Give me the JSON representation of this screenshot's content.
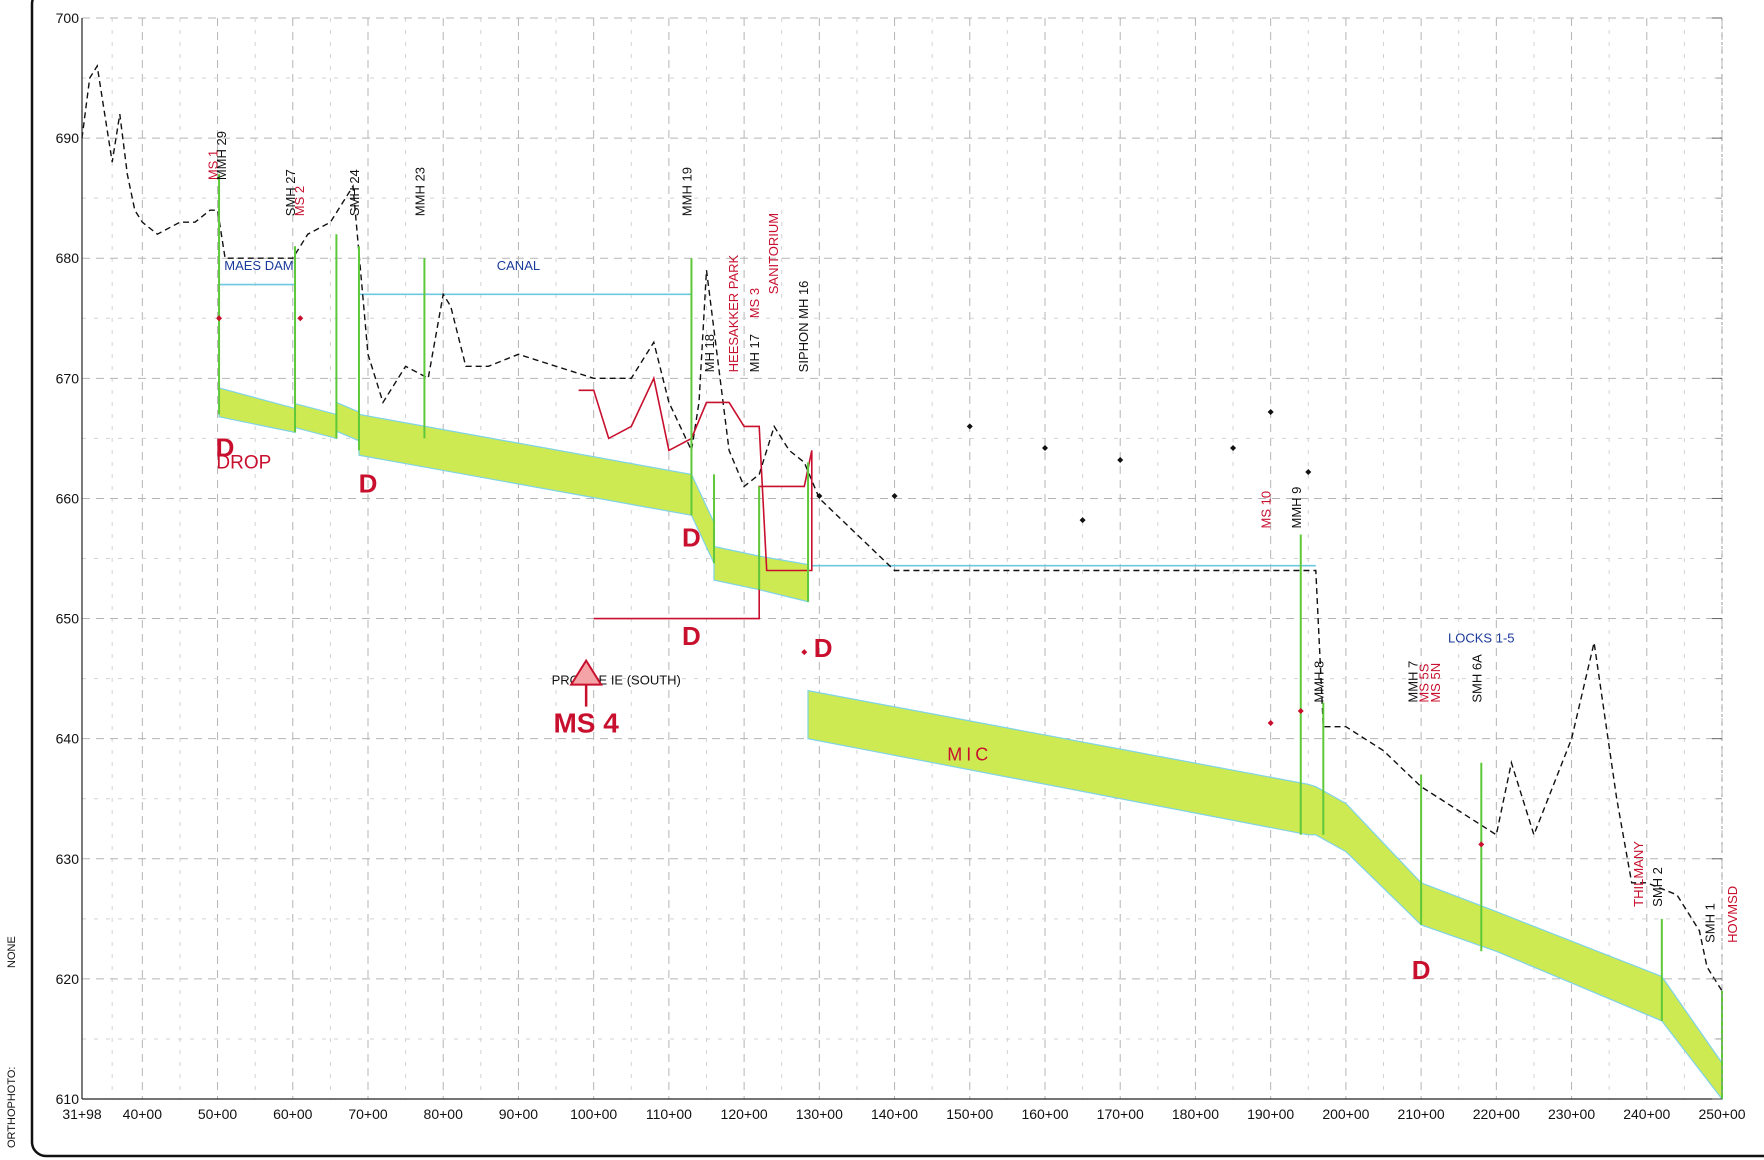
{
  "sidebar": {
    "projection": "NONE",
    "orthophoto": "ORTHOPHOTO:"
  },
  "colors": {
    "pipe_fill": "#cdea52",
    "pipe_edge": "#7fd3e6",
    "ground": "#111111",
    "profile_red": "#c8102e",
    "label_black": "#111111",
    "label_red": "#c8102e",
    "label_blue": "#1a3a9a",
    "hgl": "#6cc9e0",
    "manhole_green": "#5ec83a",
    "grid": "#b5b5b5"
  },
  "chart_data": {
    "type": "profile",
    "y_range": [
      610,
      700
    ],
    "y_ticks": [
      610,
      620,
      630,
      640,
      650,
      660,
      670,
      680,
      690,
      700
    ],
    "x_range": [
      3198,
      25000
    ],
    "x_ticks": [
      {
        "sta": 3198,
        "label": "31+98"
      },
      {
        "sta": 4000,
        "label": "40+00"
      },
      {
        "sta": 5000,
        "label": "50+00"
      },
      {
        "sta": 6000,
        "label": "60+00"
      },
      {
        "sta": 7000,
        "label": "70+00"
      },
      {
        "sta": 8000,
        "label": "80+00"
      },
      {
        "sta": 9000,
        "label": "90+00"
      },
      {
        "sta": 10000,
        "label": "100+00"
      },
      {
        "sta": 11000,
        "label": "110+00"
      },
      {
        "sta": 12000,
        "label": "120+00"
      },
      {
        "sta": 13000,
        "label": "130+00"
      },
      {
        "sta": 14000,
        "label": "140+00"
      },
      {
        "sta": 15000,
        "label": "150+00"
      },
      {
        "sta": 16000,
        "label": "160+00"
      },
      {
        "sta": 17000,
        "label": "170+00"
      },
      {
        "sta": 18000,
        "label": "180+00"
      },
      {
        "sta": 19000,
        "label": "190+00"
      },
      {
        "sta": 20000,
        "label": "200+00"
      },
      {
        "sta": 21000,
        "label": "210+00"
      },
      {
        "sta": 22000,
        "label": "220+00"
      },
      {
        "sta": 23000,
        "label": "230+00"
      },
      {
        "sta": 24000,
        "label": "240+00"
      },
      {
        "sta": 25000,
        "label": "250+00"
      }
    ],
    "pipe_bands": [
      {
        "sta": [
          5020,
          6030,
          6030,
          6580,
          6580,
          6880,
          6880,
          11300,
          11600,
          11600,
          12200,
          12200,
          12850
        ],
        "top": [
          669.2,
          667.5,
          667.9,
          667.0,
          668.0,
          667.2,
          667.0,
          662.0,
          658.0,
          656.0,
          655.2,
          655.2,
          654.5
        ],
        "bottom": [
          666.8,
          665.5,
          665.9,
          665.0,
          665.6,
          664.8,
          663.6,
          658.6,
          654.6,
          653.2,
          652.4,
          652.4,
          651.4
        ]
      },
      {
        "sta": [
          12850,
          19500,
          19600,
          20000,
          21000,
          22000,
          24200,
          25000
        ],
        "top": [
          644.0,
          636.2,
          636.0,
          634.6,
          628.0,
          625.6,
          620.2,
          613.0
        ],
        "bottom": [
          640.0,
          632.0,
          632.0,
          630.6,
          624.5,
          622.3,
          616.5,
          610.0
        ]
      }
    ],
    "ground_profile": {
      "sta": [
        3198,
        3300,
        3400,
        3500,
        3600,
        3700,
        3800,
        3900,
        4000,
        4200,
        4500,
        4700,
        4900,
        5000,
        5100,
        5500,
        5800,
        6000,
        6200,
        6500,
        6800,
        7000,
        7200,
        7500,
        7800,
        8000,
        8100,
        8300,
        8600,
        9000,
        9500,
        10000,
        10500,
        10800,
        11000,
        11300,
        11400,
        11500,
        11800,
        12000,
        12200,
        12400,
        12600,
        12800,
        13000,
        14000,
        16000,
        18000,
        19000,
        19600,
        19700,
        20000,
        20500,
        21000,
        21500,
        22000,
        22200,
        22500,
        23000,
        23300,
        23600,
        23800,
        24000,
        24400,
        24700,
        24800,
        25000
      ],
      "elev": [
        690,
        695,
        696,
        692,
        688,
        692,
        687,
        684,
        683,
        682,
        683,
        683,
        684,
        684,
        680,
        680,
        680,
        680,
        682,
        683,
        686,
        672,
        668,
        671,
        670,
        677,
        676,
        671,
        671,
        672,
        671,
        670,
        670,
        673,
        668,
        664,
        668,
        679,
        664,
        661,
        662,
        666,
        664,
        663,
        660,
        654,
        654,
        654,
        654,
        654,
        641,
        641,
        639,
        636,
        634,
        632,
        638,
        632,
        640,
        648,
        635,
        628,
        628,
        627,
        624,
        621,
        619
      ],
      "style": "dashed"
    },
    "existing_profile_red": {
      "sta": [
        9800,
        10000,
        10200,
        10500,
        10800,
        11000,
        11300,
        11500,
        11800,
        12000,
        12200,
        12300,
        12900,
        12900,
        12800,
        12200,
        12200,
        12000,
        11700,
        11300,
        11000,
        10500,
        10000
      ],
      "elev": [
        669,
        669,
        665,
        666,
        670,
        664,
        665,
        668,
        668,
        666,
        666,
        654,
        654,
        664,
        661,
        661,
        650,
        650,
        650,
        650,
        650,
        650,
        650
      ],
      "note": "approximate"
    },
    "hgl_lines": [
      {
        "sta": [
          5020,
          6030
        ],
        "elev": [
          677.8,
          677.8
        ]
      },
      {
        "sta": [
          6880,
          11300
        ],
        "elev": [
          677.0,
          677.0
        ]
      },
      {
        "sta": [
          12900,
          19600
        ],
        "elev": [
          654.4,
          654.4
        ]
      }
    ],
    "manholes": [
      {
        "sta": 5020,
        "top": 687,
        "bot": 667
      },
      {
        "sta": 6030,
        "top": 681,
        "bot": 665.5
      },
      {
        "sta": 6580,
        "top": 682,
        "bot": 665
      },
      {
        "sta": 6880,
        "top": 681,
        "bot": 664
      },
      {
        "sta": 7750,
        "top": 680,
        "bot": 665
      },
      {
        "sta": 11300,
        "top": 680,
        "bot": 658.6
      },
      {
        "sta": 11600,
        "top": 662,
        "bot": 654.6
      },
      {
        "sta": 12200,
        "top": 661,
        "bot": 652.4
      },
      {
        "sta": 12850,
        "top": 663,
        "bot": 651.4
      },
      {
        "sta": 19400,
        "top": 657,
        "bot": 632
      },
      {
        "sta": 19700,
        "top": 643,
        "bot": 632
      },
      {
        "sta": 21000,
        "top": 637,
        "bot": 624.5
      },
      {
        "sta": 21800,
        "top": 638,
        "bot": 622.3
      },
      {
        "sta": 24200,
        "top": 625,
        "bot": 616.5
      },
      {
        "sta": 25000,
        "top": 619,
        "bot": 610
      }
    ],
    "points": [
      {
        "sta": 5020,
        "elev": 675.0,
        "color": "red"
      },
      {
        "sta": 6100,
        "elev": 675.0,
        "color": "red"
      },
      {
        "sta": 12800,
        "elev": 647.2,
        "color": "red"
      },
      {
        "sta": 19000,
        "elev": 641.3,
        "color": "red"
      },
      {
        "sta": 19400,
        "elev": 642.3,
        "color": "red"
      },
      {
        "sta": 21800,
        "elev": 631.2,
        "color": "red"
      },
      {
        "sta": 13000,
        "elev": 660.2,
        "color": "black"
      },
      {
        "sta": 14000,
        "elev": 660.2,
        "color": "black"
      },
      {
        "sta": 15000,
        "elev": 666.0,
        "color": "black"
      },
      {
        "sta": 16000,
        "elev": 664.2,
        "color": "black"
      },
      {
        "sta": 16500,
        "elev": 658.2,
        "color": "black"
      },
      {
        "sta": 17000,
        "elev": 663.2,
        "color": "black"
      },
      {
        "sta": 18500,
        "elev": 664.2,
        "color": "black"
      },
      {
        "sta": 19000,
        "elev": 667.2,
        "color": "black"
      },
      {
        "sta": 19500,
        "elev": 662.2,
        "color": "black"
      }
    ],
    "vertical_labels": [
      {
        "text": "MS 1",
        "sta": 5000,
        "elev": 686.5,
        "color": "red"
      },
      {
        "text": "MMH 29",
        "sta": 5110,
        "elev": 686.5,
        "color": "black"
      },
      {
        "text": "SMH 27",
        "sta": 6030,
        "elev": 683.5,
        "color": "black"
      },
      {
        "text": "MS 2",
        "sta": 6150,
        "elev": 683.5,
        "color": "red"
      },
      {
        "text": "SMH 24",
        "sta": 6880,
        "elev": 683.5,
        "color": "black"
      },
      {
        "text": "MMH 23",
        "sta": 7750,
        "elev": 683.5,
        "color": "black"
      },
      {
        "text": "MMH 19",
        "sta": 11300,
        "elev": 683.5,
        "color": "black"
      },
      {
        "text": "MH 18",
        "sta": 11600,
        "elev": 670.5,
        "color": "black"
      },
      {
        "text": "HEESAKKER PARK",
        "sta": 11920,
        "elev": 670.5,
        "color": "red"
      },
      {
        "text": "MS 3",
        "sta": 12200,
        "elev": 675.0,
        "color": "red"
      },
      {
        "text": "MH 17",
        "sta": 12200,
        "elev": 670.5,
        "color": "black"
      },
      {
        "text": "SANITORIUM",
        "sta": 12450,
        "elev": 677.0,
        "color": "red"
      },
      {
        "text": "SIPHON  MH 16",
        "sta": 12850,
        "elev": 670.5,
        "color": "black"
      },
      {
        "text": "MS 10",
        "sta": 19000,
        "elev": 657.5,
        "color": "red"
      },
      {
        "text": "MMH 9",
        "sta": 19400,
        "elev": 657.5,
        "color": "black"
      },
      {
        "text": "MMH 8",
        "sta": 19700,
        "elev": 643.0,
        "color": "black"
      },
      {
        "text": "MMH 7",
        "sta": 20950,
        "elev": 643.0,
        "color": "black"
      },
      {
        "text": "MS 5S",
        "sta": 21100,
        "elev": 643.0,
        "color": "red"
      },
      {
        "text": "MS 5N",
        "sta": 21250,
        "elev": 643.0,
        "color": "red"
      },
      {
        "text": "SMH 6A",
        "sta": 21800,
        "elev": 643.0,
        "color": "black"
      },
      {
        "text": "THILMANY",
        "sta": 23950,
        "elev": 626.0,
        "color": "red"
      },
      {
        "text": "SMH 2",
        "sta": 24200,
        "elev": 626.0,
        "color": "black"
      },
      {
        "text": "SMH 1",
        "sta": 24900,
        "elev": 623.0,
        "color": "black"
      },
      {
        "text": "HOVMSD",
        "sta": 25200,
        "elev": 623.0,
        "color": "red"
      }
    ],
    "horizontal_labels": [
      {
        "text": "MAES  DAM",
        "sta": 5550,
        "elev": 679.0,
        "color": "blue"
      },
      {
        "text": "CANAL",
        "sta": 9000,
        "elev": 679.0,
        "color": "blue"
      },
      {
        "text": "LOCKS  1-5",
        "sta": 21800,
        "elev": 648.0,
        "color": "blue"
      },
      {
        "text": "PROFILE IE (SOUTH)",
        "sta": 10300,
        "elev": 644.5,
        "color": "black"
      },
      {
        "text": "MIC",
        "sta": 15000,
        "elev": 638.2,
        "color": "red"
      }
    ],
    "drop_markers": [
      {
        "text": "D",
        "sta": 5100,
        "elev": 663.5
      },
      {
        "text": "D",
        "sta": 7000,
        "elev": 660.5
      },
      {
        "text": "D",
        "sta": 11300,
        "elev": 656.0
      },
      {
        "text": "D",
        "sta": 11300,
        "elev": 647.8
      },
      {
        "text": "D",
        "sta": 13050,
        "elev": 646.8
      },
      {
        "text": "D",
        "sta": 21000,
        "elev": 620.0
      }
    ],
    "drop_word": {
      "text": "DROP",
      "sta": 5350,
      "elev": 662.5
    },
    "ms4": {
      "text": "MS 4",
      "sta": 9900,
      "elev": 640.5,
      "arrow_sta": 9900,
      "arrow_elev": 646.5
    }
  }
}
